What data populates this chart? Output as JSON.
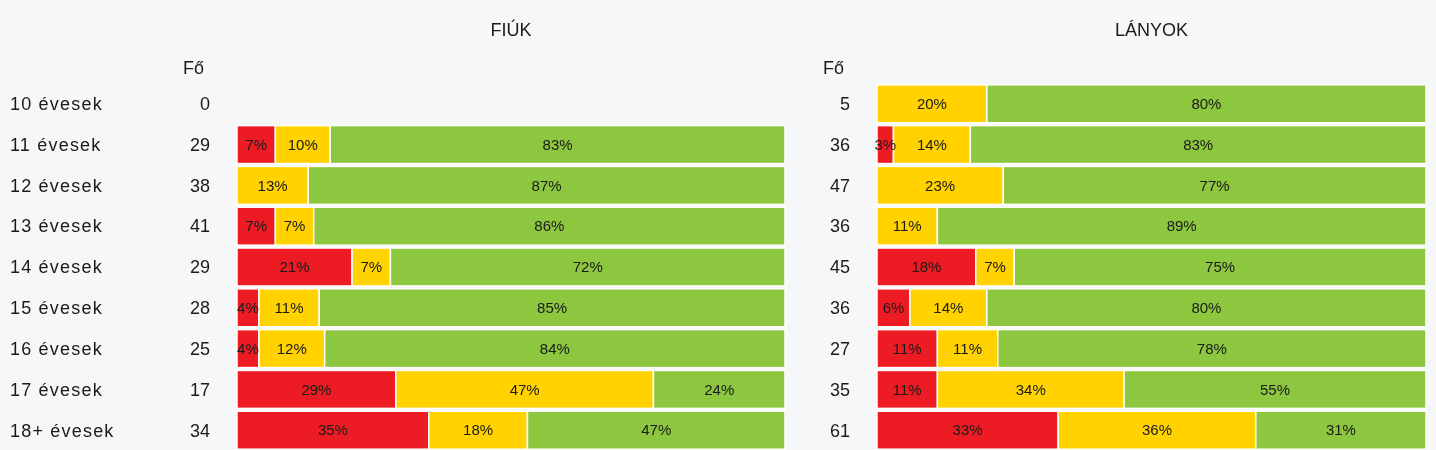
{
  "chart_data": [
    {
      "type": "bar",
      "title": "FIÚK",
      "orientation": "horizontal",
      "stacked": true,
      "tick_labels": "y",
      "xlim": [
        0,
        100
      ],
      "categories": [
        "10 évesek",
        "11 évesek",
        "12 évesek",
        "13 évesek",
        "14 évesek",
        "15 évesek",
        "16 évesek",
        "17 évesek",
        "18+ évesek"
      ],
      "series": [
        {
          "color": "#ed1c24",
          "values": [
            null,
            7,
            null,
            7,
            21,
            4,
            4,
            29,
            35
          ],
          "value_labels": [
            null,
            "7%",
            null,
            "7%",
            "21%",
            "4%",
            "4%",
            "29%",
            "35%"
          ]
        },
        {
          "color": "#ffd200",
          "values": [
            null,
            10,
            13,
            7,
            7,
            11,
            12,
            47,
            18
          ],
          "value_labels": [
            null,
            "10%",
            "13%",
            "7%",
            "7%",
            "11%",
            "12%",
            "47%",
            "18%"
          ]
        },
        {
          "color": "#8dc63f",
          "values": [
            null,
            83,
            87,
            86,
            72,
            85,
            84,
            24,
            47
          ],
          "value_labels": [
            null,
            "83%",
            "87%",
            "86%",
            "72%",
            "85%",
            "84%",
            "24%",
            "47%"
          ]
        }
      ],
      "annotations": [
        "Fő",
        "0",
        "29",
        "38",
        "41",
        "29",
        "28",
        "25",
        "17",
        "34"
      ]
    },
    {
      "type": "bar",
      "title": "LÁNYOK",
      "orientation": "horizontal",
      "stacked": true,
      "tick_labels": false,
      "xlim": [
        0,
        100
      ],
      "categories": [
        null,
        null,
        null,
        null,
        null,
        null,
        null,
        null,
        null
      ],
      "series": [
        {
          "color": "#ed1c24",
          "values": [
            null,
            3,
            null,
            null,
            18,
            6,
            11,
            11,
            33
          ],
          "value_labels": [
            null,
            "3%",
            null,
            null,
            "18%",
            "6%",
            "11%",
            "11%",
            "33%"
          ]
        },
        {
          "color": "#ffd200",
          "values": [
            20,
            14,
            23,
            11,
            7,
            14,
            11,
            34,
            36
          ],
          "value_labels": [
            "20%",
            "14%",
            "23%",
            "11%",
            "7%",
            "14%",
            "11%",
            "34%",
            "36%"
          ]
        },
        {
          "color": "#8dc63f",
          "values": [
            80,
            83,
            77,
            89,
            75,
            80,
            78,
            55,
            31
          ],
          "value_labels": [
            "80%",
            "83%",
            "77%",
            "89%",
            "75%",
            "80%",
            "78%",
            "55%",
            "31%"
          ]
        }
      ],
      "annotations": [
        "Fő",
        "5",
        "36",
        "47",
        "36",
        "45",
        "36",
        "27",
        "35",
        "61"
      ]
    }
  ]
}
